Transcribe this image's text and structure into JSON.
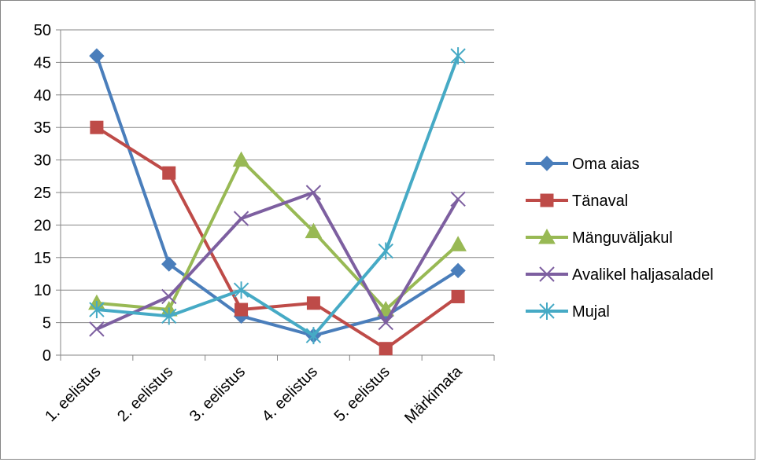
{
  "chart_data": {
    "type": "line",
    "title": "",
    "xlabel": "",
    "ylabel": "",
    "categories": [
      "1. eelistus",
      "2. eelistus",
      "3. eelistus",
      "4. eelistus",
      "5. eelistus",
      "Märkimata"
    ],
    "ylim": [
      0,
      50
    ],
    "yticks": [
      0,
      5,
      10,
      15,
      20,
      25,
      30,
      35,
      40,
      45,
      50
    ],
    "grid": true,
    "legend_position": "right",
    "series": [
      {
        "name": "Oma aias",
        "values": [
          46,
          14,
          6,
          3,
          6,
          13
        ],
        "color": "#4a7ebb",
        "marker": "diamond"
      },
      {
        "name": "Tänaval",
        "values": [
          35,
          28,
          7,
          8,
          1,
          9
        ],
        "color": "#be4b48",
        "marker": "square"
      },
      {
        "name": "Mänguväljakul",
        "values": [
          8,
          7,
          30,
          19,
          7,
          17
        ],
        "color": "#98b954",
        "marker": "triangle"
      },
      {
        "name": "Avalikel haljasaladel",
        "values": [
          4,
          9,
          21,
          25,
          5,
          24
        ],
        "color": "#7d5fa0",
        "marker": "x"
      },
      {
        "name": "Mujal",
        "values": [
          7,
          6,
          10,
          3,
          16,
          46
        ],
        "color": "#46aac5",
        "marker": "star"
      }
    ]
  }
}
